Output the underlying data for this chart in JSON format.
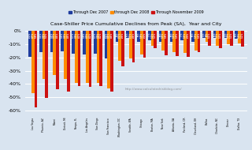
{
  "title": "Case-Shiller Price Cumulative Declines from Peak (SA),  Year and City",
  "watermark": "http://www.calculatedriskblog.com/",
  "legend_labels": [
    "Through Dec 2007",
    "through Dec 2008",
    "Through November 2009"
  ],
  "colors": [
    "#1f3c9e",
    "#ff8c00",
    "#cc1111"
  ],
  "cities": [
    "Las Vegas",
    "Phoenix, AZ",
    "Miami",
    "Detroit, MI",
    "Tampa, FL",
    "Los Angeles",
    "San Diego",
    "San Francisco",
    "Washington, DC",
    "Seattle, WA",
    "Chicago",
    "Boston, MA",
    "New York",
    "Atlanta, GA",
    "Portland, OR",
    "Cleveland, OH",
    "Dallas",
    "Charlotte, NC",
    "Denver",
    "Dallas, TX"
  ],
  "dec2007": [
    -19.5,
    -16.0,
    -16.0,
    -15.5,
    -17.0,
    -17.5,
    -17.0,
    -20.5,
    -8.0,
    -5.5,
    -8.0,
    -7.0,
    -8.0,
    -8.0,
    -7.0,
    -8.0,
    -5.0,
    -5.5,
    -5.0,
    -6.0
  ],
  "dec2008": [
    -47.0,
    -36.5,
    -33.0,
    -36.0,
    -39.0,
    -39.5,
    -39.0,
    -43.5,
    -22.5,
    -21.0,
    -17.5,
    -11.0,
    -15.0,
    -16.0,
    -16.5,
    -15.0,
    -8.5,
    -11.0,
    -10.0,
    -9.5
  ],
  "nov2009": [
    -57.5,
    -50.5,
    -44.0,
    -45.5,
    -41.5,
    -42.0,
    -41.5,
    -45.5,
    -26.5,
    -24.0,
    -20.0,
    -13.0,
    -18.5,
    -19.0,
    -19.5,
    -16.0,
    -11.0,
    -13.0,
    -11.0,
    -11.5
  ],
  "ylim": [
    -65,
    3
  ],
  "yticks": [
    0,
    -10,
    -20,
    -30,
    -40,
    -50,
    -60
  ],
  "ytick_labels": [
    "0%",
    "-10%",
    "-20%",
    "-30%",
    "-40%",
    "-50%",
    "-60%"
  ],
  "bg_color": "#d9e4f0",
  "grid_color": "#ffffff"
}
